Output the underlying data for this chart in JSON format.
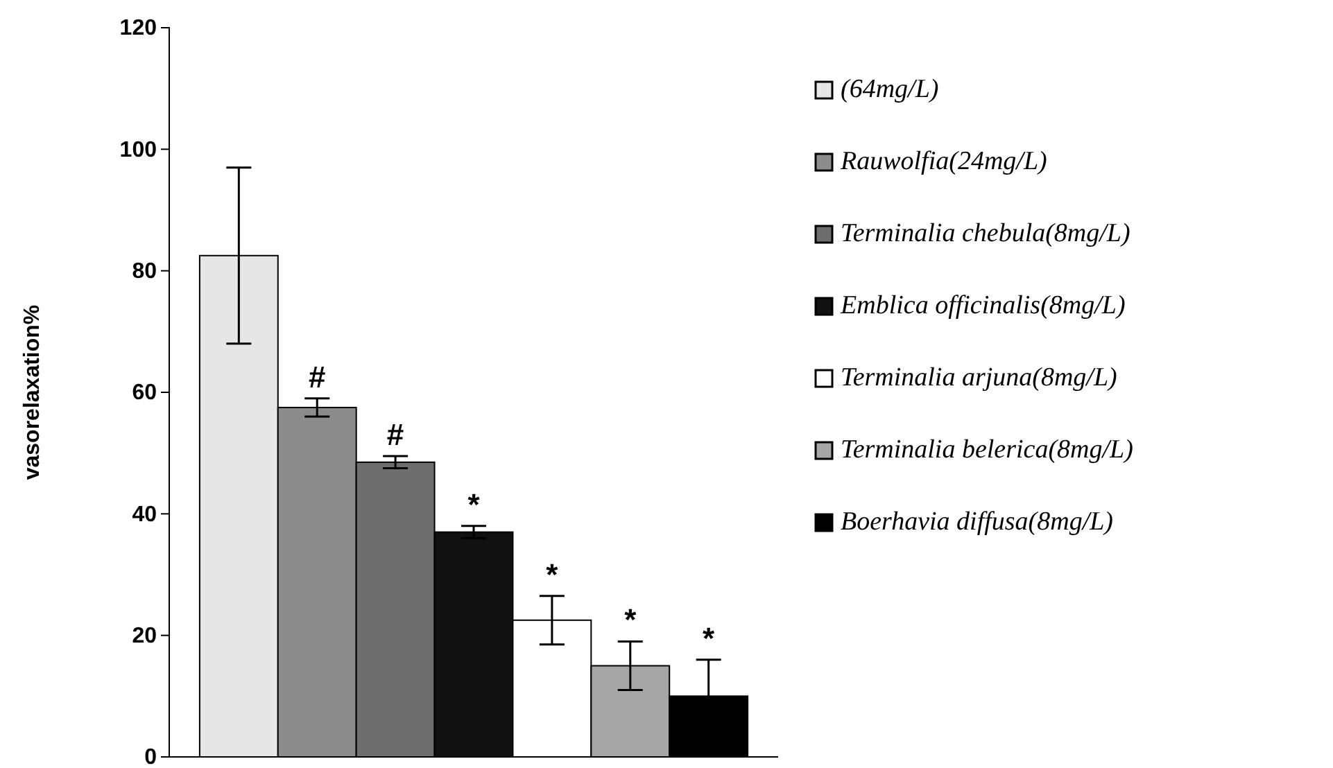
{
  "chart_data": {
    "type": "bar",
    "ylabel": "vasorelaxation%",
    "categories": [
      null
    ],
    "ylim": [
      0,
      120
    ],
    "yticks": [
      0,
      20,
      40,
      60,
      80,
      100,
      120
    ],
    "grid": false,
    "legend": "right",
    "series": [
      {
        "name": "(64mg/L)",
        "color": "#e6e6e6",
        "values": [
          82.5
        ],
        "errors": [
          14.5
        ],
        "value_labels": [
          null
        ]
      },
      {
        "name": "Rauwolfia(24mg/L)",
        "color": "#8c8c8c",
        "values": [
          57.5
        ],
        "errors": [
          1.5
        ],
        "value_labels": [
          "#"
        ]
      },
      {
        "name": "Terminalia chebula(8mg/L)",
        "color": "#6e6e6e",
        "values": [
          48.5
        ],
        "errors": [
          1
        ],
        "value_labels": [
          "#"
        ]
      },
      {
        "name": "Emblica officinalis(8mg/L)",
        "color": "#111111",
        "values": [
          37
        ],
        "errors": [
          1
        ],
        "value_labels": [
          "*"
        ]
      },
      {
        "name": "Terminalia arjuna(8mg/L)",
        "color": "#ffffff",
        "values": [
          22.5
        ],
        "errors": [
          4
        ],
        "value_labels": [
          "*"
        ]
      },
      {
        "name": "Terminalia belerica(8mg/L)",
        "color": "#a6a6a6",
        "values": [
          15
        ],
        "errors": [
          4
        ],
        "value_labels": [
          "*"
        ]
      },
      {
        "name": "Boerhavia diffusa(8mg/L)",
        "color": "#000000",
        "values": [
          10
        ],
        "errors": [
          6
        ],
        "value_labels": [
          "*"
        ]
      }
    ]
  }
}
